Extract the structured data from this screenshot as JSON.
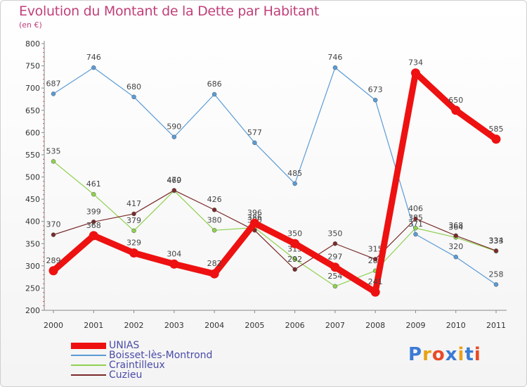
{
  "title": "Evolution du Montant de la Dette par Habitant",
  "subtitle": "(en €)",
  "logo": "Proxiti",
  "chart_data": {
    "type": "line",
    "x": [
      "2000",
      "2001",
      "2002",
      "2003",
      "2004",
      "2005",
      "2006",
      "2007",
      "2008",
      "2009",
      "2010",
      "2011"
    ],
    "ylim": [
      200,
      800
    ],
    "yticks": [
      200,
      250,
      300,
      350,
      400,
      450,
      500,
      550,
      600,
      650,
      700,
      750,
      800
    ],
    "grid": false,
    "legend_position": "bottom-left",
    "series": [
      {
        "name": "UNIAS",
        "color": "#ee1111",
        "values": [
          289,
          368,
          329,
          304,
          282,
          396,
          350,
          297,
          241,
          734,
          650,
          585
        ]
      },
      {
        "name": "Boisset-lès-Montrond",
        "color": "#5b9bd5",
        "values": [
          687,
          746,
          680,
          590,
          686,
          577,
          485,
          746,
          673,
          371,
          320,
          258
        ]
      },
      {
        "name": "Craintilleux",
        "color": "#8fd14f",
        "values": [
          535,
          461,
          379,
          469,
          380,
          386,
          315,
          254,
          289,
          385,
          364,
          333
        ]
      },
      {
        "name": "Cuzieu",
        "color": "#7a2a2a",
        "values": [
          370,
          399,
          417,
          470,
          426,
          380,
          292,
          350,
          315,
          406,
          368,
          334
        ]
      }
    ]
  }
}
